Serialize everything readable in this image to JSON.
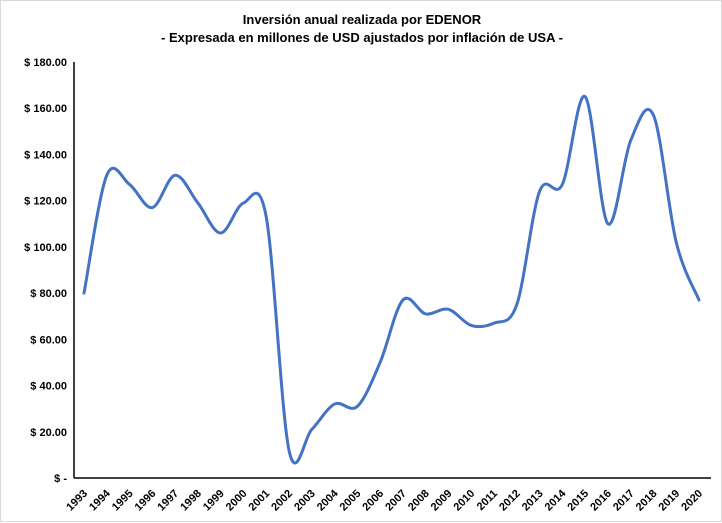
{
  "chart_data": {
    "type": "line",
    "title": "Inversión anual realizada por EDENOR",
    "subtitle": "- Expresada en millones de USD ajustados por inflación de USA -",
    "xlabel": "",
    "ylabel": "",
    "x": [
      "1993",
      "1994",
      "1995",
      "1996",
      "1997",
      "1998",
      "1999",
      "2000",
      "2001",
      "2002",
      "2003",
      "2004",
      "2005",
      "2006",
      "2007",
      "2008",
      "2009",
      "2010",
      "2011",
      "2012",
      "2013",
      "2014",
      "2015",
      "2016",
      "2017",
      "2018",
      "2019",
      "2020"
    ],
    "series": [
      {
        "values": [
          80,
          131,
          127,
          117,
          131,
          119,
          106,
          119,
          113,
          12,
          21,
          32,
          31,
          50,
          77,
          71,
          73,
          66,
          67,
          75,
          124,
          127,
          165,
          110,
          146,
          157,
          102,
          77
        ],
        "color": "#4472c4"
      }
    ],
    "ylim": [
      0,
      180
    ],
    "yticks": [
      0,
      20,
      40,
      60,
      80,
      100,
      120,
      140,
      160,
      180
    ],
    "ytick_labels": [
      "$ -",
      "$ 20.00",
      "$ 40.00",
      "$ 60.00",
      "$ 80.00",
      "$ 100.00",
      "$ 120.00",
      "$ 140.00",
      "$ 160.00",
      "$ 180.00"
    ],
    "grid": false,
    "legend": "none",
    "axis_color": "#000000"
  }
}
